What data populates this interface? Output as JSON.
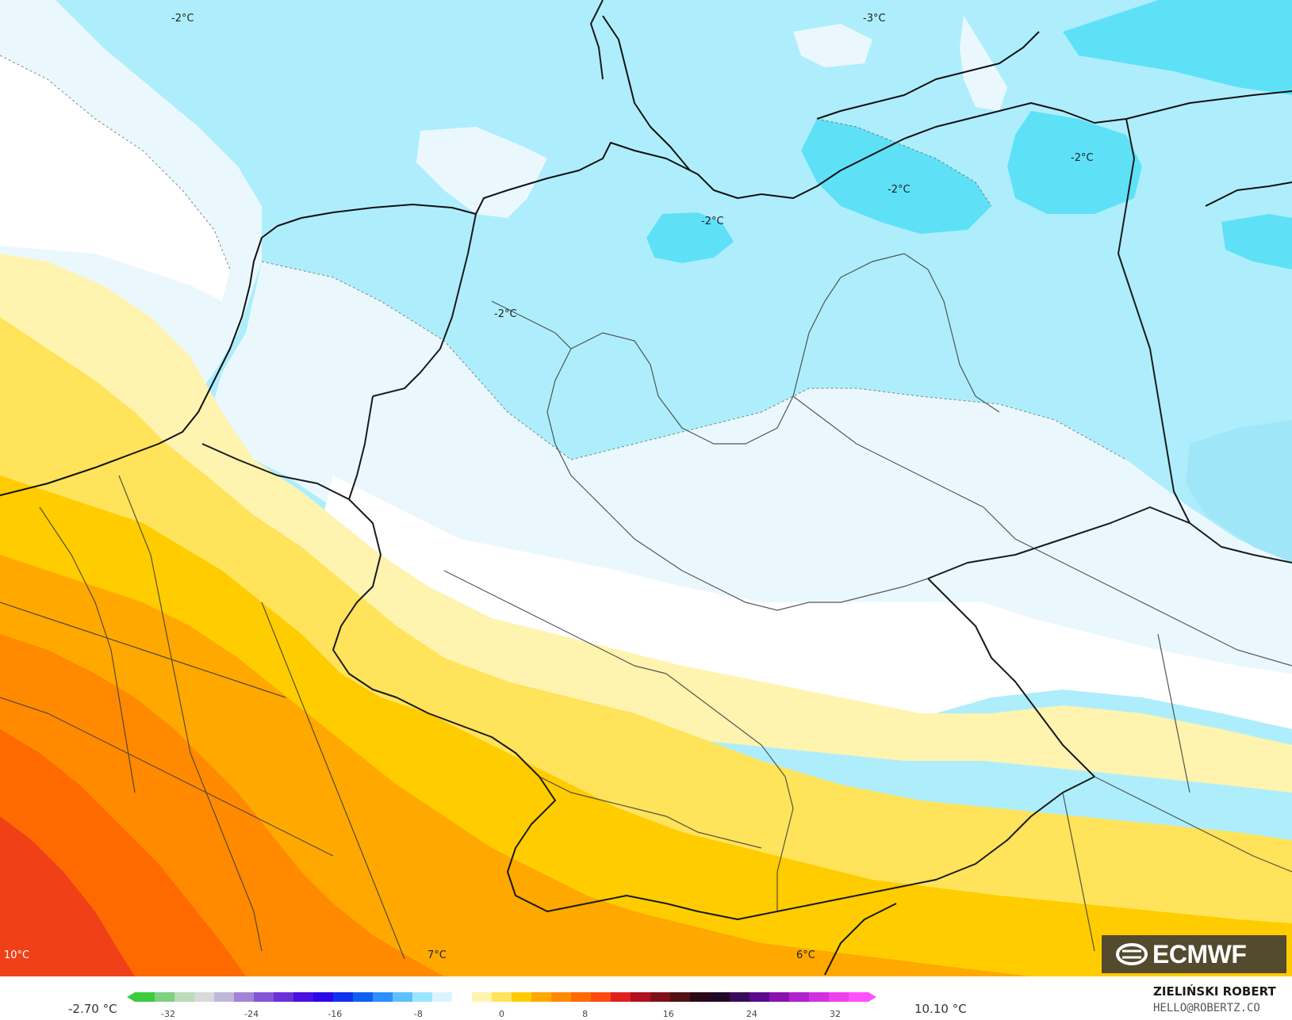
{
  "map": {
    "labels": [
      {
        "text": "-2°C"
      },
      {
        "text": "-3°C"
      },
      {
        "text": "-2°C"
      },
      {
        "text": "-2°C"
      },
      {
        "text": "-2°C"
      },
      {
        "text": "-2°C"
      },
      {
        "text": "10°C"
      },
      {
        "text": "7°C"
      },
      {
        "text": "6°C"
      }
    ]
  },
  "colorbar": {
    "min_label": "-2.70 °C",
    "max_label": "10.10 °C",
    "ticks": [
      "-32",
      "-24",
      "-16",
      "-8",
      "0",
      "8",
      "16",
      "24",
      "32"
    ],
    "colors": [
      "#3ccb3c",
      "#7fd07f",
      "#b9dcb9",
      "#d9d9d9",
      "#c0b6d9",
      "#a184d6",
      "#8456d6",
      "#6a2fd9",
      "#4a10e0",
      "#2a08e8",
      "#1030f0",
      "#1060f0",
      "#2a90ff",
      "#5ac0ff",
      "#9be6ff",
      "#d9f4ff",
      "#ffffff",
      "#fff3b0",
      "#ffe35a",
      "#ffcc00",
      "#ffa800",
      "#ff8a00",
      "#ff6a00",
      "#ff4a10",
      "#e02020",
      "#b01020",
      "#801018",
      "#501018",
      "#2a0818",
      "#200828",
      "#3a0a5a",
      "#5a0a8a",
      "#8a10b0",
      "#b020d0",
      "#d030e0",
      "#ee40ee",
      "#ff50ff"
    ]
  },
  "credits": {
    "author": "ZIELIŃSKI ROBERT",
    "email": "HELLO@ROBERTZ.CO"
  },
  "logo": {
    "text": "ECMWF"
  }
}
